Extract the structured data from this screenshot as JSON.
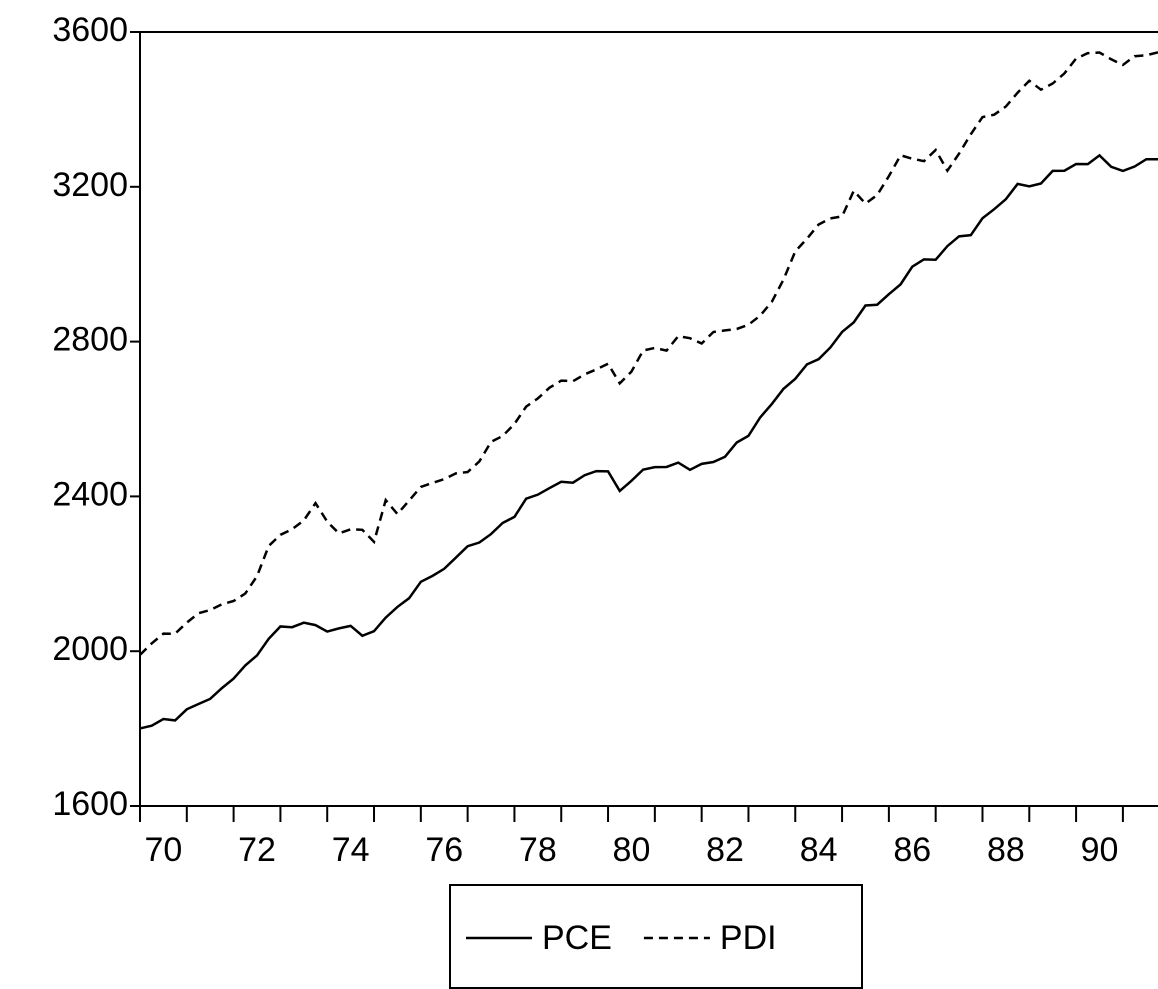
{
  "chart_data": {
    "type": "line",
    "x": [
      70,
      70.25,
      70.5,
      70.75,
      71,
      71.25,
      71.5,
      71.75,
      72,
      72.25,
      72.5,
      72.75,
      73,
      73.25,
      73.5,
      73.75,
      74,
      74.25,
      74.5,
      74.75,
      75,
      75.25,
      75.5,
      75.75,
      76,
      76.25,
      76.5,
      76.75,
      77,
      77.25,
      77.5,
      77.75,
      78,
      78.25,
      78.5,
      78.75,
      79,
      79.25,
      79.5,
      79.75,
      80,
      80.25,
      80.5,
      80.75,
      81,
      81.25,
      81.5,
      81.75,
      82,
      82.25,
      82.5,
      82.75,
      83,
      83.25,
      83.5,
      83.75,
      84,
      84.25,
      84.5,
      84.75,
      85,
      85.25,
      85.5,
      85.75,
      86,
      86.25,
      86.5,
      86.75,
      87,
      87.25,
      87.5,
      87.75,
      88,
      88.25,
      88.5,
      88.75,
      89,
      89.25,
      89.5,
      89.75,
      90,
      90.25,
      90.5,
      90.75,
      91,
      91.25,
      91.5,
      91.75
    ],
    "series": [
      {
        "name": "PCE",
        "color": "#000000",
        "line_style": "solid",
        "values": [
          1800.5,
          1807.5,
          1824.7,
          1821.2,
          1849.9,
          1863.5,
          1876.9,
          1904.6,
          1929.3,
          1963.3,
          1989.1,
          2032.1,
          2063.9,
          2062.0,
          2073.7,
          2067.4,
          2050.8,
          2059.0,
          2065.5,
          2039.9,
          2051.8,
          2086.9,
          2114.4,
          2137.0,
          2179.3,
          2194.7,
          2213.0,
          2242.0,
          2271.3,
          2280.8,
          2302.6,
          2331.6,
          2347.1,
          2394.0,
          2404.5,
          2421.6,
          2437.9,
          2435.4,
          2454.7,
          2465.4,
          2464.6,
          2414.2,
          2440.3,
          2469.2,
          2475.5,
          2476.1,
          2487.4,
          2468.6,
          2484.0,
          2488.9,
          2502.5,
          2539.3,
          2556.5,
          2604.0,
          2639.0,
          2678.2,
          2703.8,
          2741.1,
          2754.6,
          2784.8,
          2824.9,
          2849.7,
          2893.3,
          2895.3,
          2922.4,
          2947.9,
          2993.7,
          3012.5,
          3011.5,
          3046.8,
          3072.0,
          3075.0,
          3118.7,
          3142.1,
          3168.0,
          3207.4,
          3201.3,
          3208.6,
          3241.1,
          3241.6,
          3258.8,
          3258.6,
          3281.2,
          3251.8,
          3241.1,
          3252.4,
          3271.2,
          3271.1
        ]
      },
      {
        "name": "PDI",
        "color": "#000000",
        "line_style": "dashed",
        "values": [
          1990.6,
          2020.1,
          2045.3,
          2045.2,
          2073.9,
          2098.0,
          2106.6,
          2121.1,
          2129.7,
          2149.1,
          2193.9,
          2272.0,
          2300.7,
          2315.2,
          2337.9,
          2382.7,
          2334.7,
          2304.5,
          2315.0,
          2313.7,
          2282.5,
          2390.3,
          2354.4,
          2389.4,
          2424.5,
          2434.9,
          2444.7,
          2459.5,
          2463.0,
          2490.3,
          2541.0,
          2556.2,
          2587.3,
          2631.9,
          2653.2,
          2680.9,
          2699.2,
          2697.6,
          2715.3,
          2728.1,
          2742.9,
          2692.0,
          2722.5,
          2777.0,
          2783.7,
          2776.7,
          2814.1,
          2808.8,
          2795.0,
          2824.8,
          2829.0,
          2832.6,
          2843.6,
          2867.0,
          2903.0,
          2960.6,
          3033.2,
          3065.9,
          3102.7,
          3118.5,
          3123.6,
          3189.6,
          3156.5,
          3178.7,
          3227.5,
          3281.4,
          3272.6,
          3266.2,
          3295.2,
          3241.7,
          3285.7,
          3335.8,
          3380.1,
          3386.3,
          3407.5,
          3443.1,
          3473.9,
          3450.9,
          3466.9,
          3493.0,
          3531.4,
          3545.3,
          3547.0,
          3529.5,
          3514.8,
          3537.4,
          3539.9,
          3547.5
        ]
      }
    ],
    "xlim": [
      70,
      91.75
    ],
    "xticks": [
      70,
      72,
      74,
      76,
      78,
      80,
      82,
      84,
      86,
      88,
      90
    ],
    "xminorticks": [
      71,
      73,
      75,
      77,
      79,
      81,
      83,
      85,
      87,
      89,
      91
    ],
    "ylim": [
      1600,
      3600
    ],
    "yticks": [
      1600,
      2000,
      2400,
      2800,
      3200,
      3600
    ],
    "grid": false,
    "legend": "bottom"
  }
}
